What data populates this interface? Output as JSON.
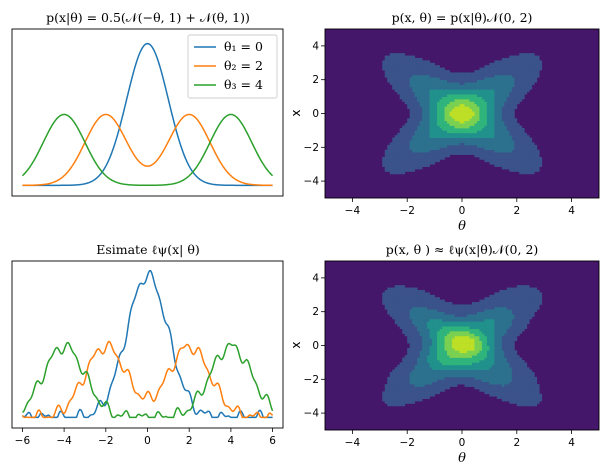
{
  "chart_data": [
    {
      "type": "line",
      "title": "p(x|θ) = 0.5(𝒩(−θ, 1) + 𝒩(θ, 1))",
      "xlim": [
        -6.5,
        6.5
      ],
      "ylim": [
        -0.03,
        0.44
      ],
      "x_ticks": [],
      "legend": "top-right",
      "series": [
        {
          "name": "θ₁ = 0",
          "color": "#1f77b4",
          "theta": 0
        },
        {
          "name": "θ₂ = 2",
          "color": "#ff7f0e",
          "theta": 2
        },
        {
          "name": "θ₃ = 4",
          "color": "#2ca02c",
          "theta": 4
        }
      ]
    },
    {
      "type": "heatmap",
      "title": "p(x, θ) = p(x|θ)𝒩(0, 2)",
      "xlabel": "θ",
      "ylabel": "x",
      "xlim": [
        -5,
        5
      ],
      "ylim": [
        -5,
        5
      ],
      "x_ticks": [
        "−4",
        "−2",
        "0",
        "2",
        "4"
      ],
      "y_ticks": [
        "4",
        "2",
        "0",
        "−2",
        "−4"
      ]
    },
    {
      "type": "line",
      "title": "Esimate ℓψ(x| θ)",
      "xlim": [
        -6.5,
        6.5
      ],
      "ylim": [
        -0.03,
        0.44
      ],
      "x_ticks": [
        "−6",
        "−4",
        "−2",
        "0",
        "2",
        "4",
        "6"
      ],
      "series": [
        {
          "color": "#1f77b4",
          "theta": 0
        },
        {
          "color": "#ff7f0e",
          "theta": 2
        },
        {
          "color": "#2ca02c",
          "theta": 4
        }
      ]
    },
    {
      "type": "heatmap",
      "title": "p(x, θ ) ≈ ℓψ(x|θ)𝒩(0, 2)",
      "xlabel": "θ",
      "ylabel": "x",
      "xlim": [
        -5,
        5
      ],
      "ylim": [
        -5,
        5
      ],
      "x_ticks": [
        "−4",
        "−2",
        "0",
        "2",
        "4"
      ],
      "y_ticks": [
        "4",
        "2",
        "0",
        "−2",
        "−4"
      ]
    }
  ],
  "colors": {
    "background": "#45176b",
    "levels": [
      "#45176b",
      "#3b538b",
      "#2c718e",
      "#21918c",
      "#2fb47c",
      "#7ad151",
      "#bddf26"
    ]
  }
}
